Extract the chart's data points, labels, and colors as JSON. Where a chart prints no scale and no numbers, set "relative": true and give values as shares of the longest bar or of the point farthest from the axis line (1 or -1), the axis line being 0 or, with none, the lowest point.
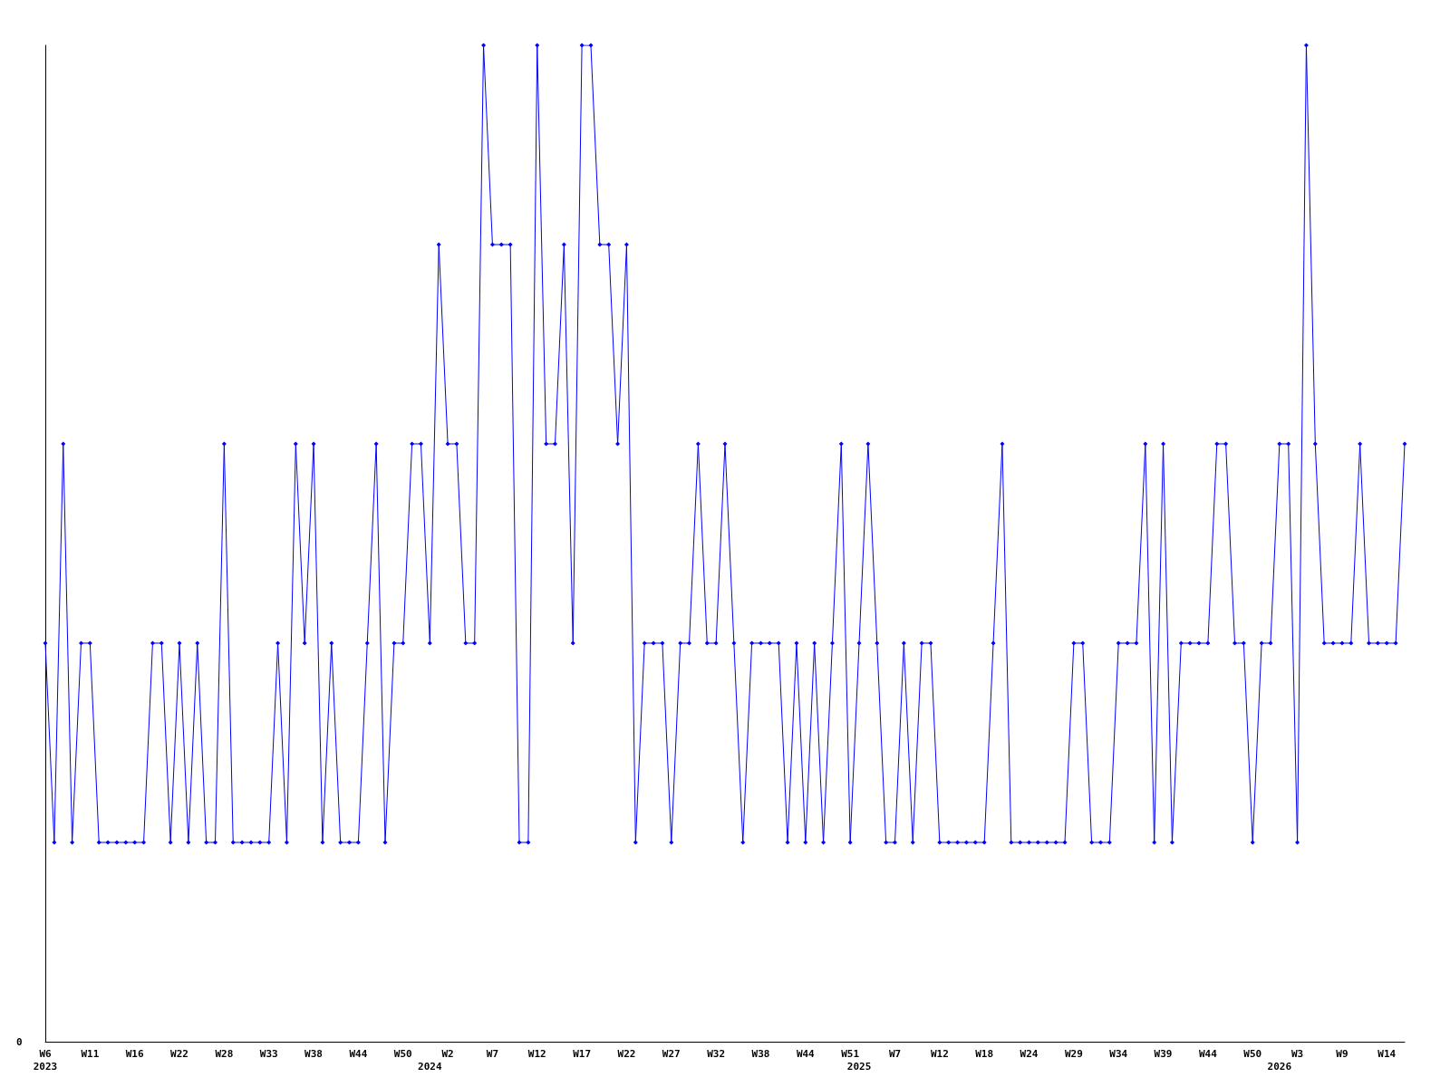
{
  "chart_data": {
    "type": "line",
    "relative": true,
    "color": "#0000ff",
    "marker": "diamond",
    "line_style": "solid",
    "annotations": [
      "0"
    ],
    "categories": [
      "W6\n2023",
      null,
      null,
      null,
      null,
      "W11",
      null,
      null,
      null,
      null,
      "W16",
      null,
      null,
      null,
      null,
      "W22",
      null,
      null,
      null,
      null,
      "W28",
      null,
      null,
      null,
      null,
      "W33",
      null,
      null,
      null,
      null,
      "W38",
      null,
      null,
      null,
      null,
      "W44",
      null,
      null,
      null,
      null,
      "W50",
      null,
      null,
      "\n2024",
      null,
      "W2",
      null,
      null,
      null,
      null,
      "W7",
      null,
      null,
      null,
      null,
      "W12",
      null,
      null,
      null,
      null,
      "W17",
      null,
      null,
      null,
      null,
      "W22",
      null,
      null,
      null,
      null,
      "W27",
      null,
      null,
      null,
      null,
      "W32",
      null,
      null,
      null,
      null,
      "W38",
      null,
      null,
      null,
      null,
      "W44",
      null,
      null,
      null,
      null,
      "W51",
      "\n2025",
      null,
      null,
      null,
      "W7",
      null,
      null,
      null,
      null,
      "W12",
      null,
      null,
      null,
      null,
      "W18",
      null,
      null,
      null,
      null,
      "W24",
      null,
      null,
      null,
      null,
      "W29",
      null,
      null,
      null,
      null,
      "W34",
      null,
      null,
      null,
      null,
      "W39",
      null,
      null,
      null,
      null,
      "W44",
      null,
      null,
      null,
      null,
      "W50",
      null,
      null,
      "\n2026",
      null,
      "W3",
      null,
      null,
      null,
      null,
      "W9",
      null,
      null,
      null,
      null,
      "W14",
      null,
      null
    ],
    "values": [
      0.4,
      0.2,
      0.6,
      0.2,
      0.4,
      0.4,
      0.2,
      0.2,
      0.2,
      0.2,
      0.2,
      0.2,
      0.4,
      0.4,
      0.2,
      0.4,
      0.2,
      0.4,
      0.2,
      0.2,
      0.6,
      0.2,
      0.2,
      0.2,
      0.2,
      0.2,
      0.4,
      0.2,
      0.6,
      0.4,
      0.6,
      0.2,
      0.4,
      0.2,
      0.2,
      0.2,
      0.4,
      0.6,
      0.2,
      0.4,
      0.4,
      0.6,
      0.6,
      0.4,
      0.8,
      0.6,
      0.6,
      0.4,
      0.4,
      1,
      0.8,
      0.8,
      0.8,
      0.2,
      0.2,
      1,
      0.6,
      0.6,
      0.8,
      0.4,
      1,
      1,
      0.8,
      0.8,
      0.6,
      0.8,
      0.2,
      0.4,
      0.4,
      0.4,
      0.2,
      0.4,
      0.4,
      0.6,
      0.4,
      0.4,
      0.6,
      0.4,
      0.2,
      0.4,
      0.4,
      0.4,
      0.4,
      0.2,
      0.4,
      0.2,
      0.4,
      0.2,
      0.4,
      0.6,
      0.2,
      0.4,
      0.6,
      0.4,
      0.2,
      0.2,
      0.4,
      0.2,
      0.4,
      0.4,
      0.2,
      0.2,
      0.2,
      0.2,
      0.2,
      0.2,
      0.4,
      0.6,
      0.2,
      0.2,
      0.2,
      0.2,
      0.2,
      0.2,
      0.2,
      0.4,
      0.4,
      0.2,
      0.2,
      0.2,
      0.4,
      0.4,
      0.4,
      0.6,
      0.2,
      0.6,
      0.2,
      0.4,
      0.4,
      0.4,
      0.4,
      0.6,
      0.6,
      0.4,
      0.4,
      0.2,
      0.4,
      0.4,
      0.6,
      0.6,
      0.2,
      1,
      0.6,
      0.4,
      0.4,
      0.4,
      0.4,
      0.6,
      0.4,
      0.4,
      0.4,
      0.4,
      0.6
    ]
  }
}
